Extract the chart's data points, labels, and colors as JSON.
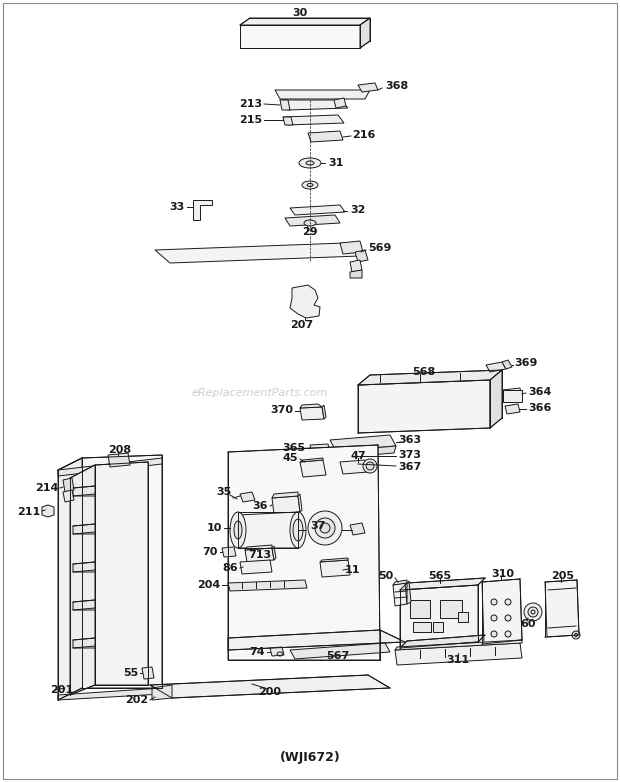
{
  "title": "(WJI672)",
  "bg_color": "#ffffff",
  "lc": "#1a1a1a",
  "watermark": "eReplacementParts.com",
  "watermark_color": "#c8c8c8"
}
